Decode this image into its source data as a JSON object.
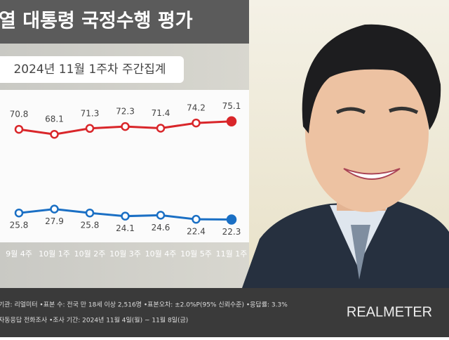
{
  "chart_data": {
    "type": "line",
    "title": "열 대통령 국정수행 평가",
    "subtitle": "2024년 11월 1주차 주간집계",
    "categories": [
      "9월 4주",
      "10월 1주",
      "10월 2주",
      "10월 3주",
      "10월 4주",
      "10월 5주",
      "11월 1주"
    ],
    "series": [
      {
        "color": "#d9262a",
        "values": [
          70.8,
          68.1,
          71.3,
          72.3,
          71.4,
          74.2,
          75.1
        ]
      },
      {
        "color": "#1a6fc4",
        "values": [
          25.8,
          27.9,
          25.8,
          24.1,
          24.6,
          22.4,
          22.3
        ]
      }
    ],
    "ylim": [
      10,
      92
    ],
    "footer": [
      "기관: 리얼미터 •표본 수: 전국 만 18세 이상 2,516명 •표본오차: ±2.0%P(95% 신뢰수준) •응답률: 3.3%",
      "자동응답 전화조사 •조사 기간: 2024년 11월 4일(월) ~ 11월 8일(금)"
    ],
    "logo": "REALMETER"
  }
}
